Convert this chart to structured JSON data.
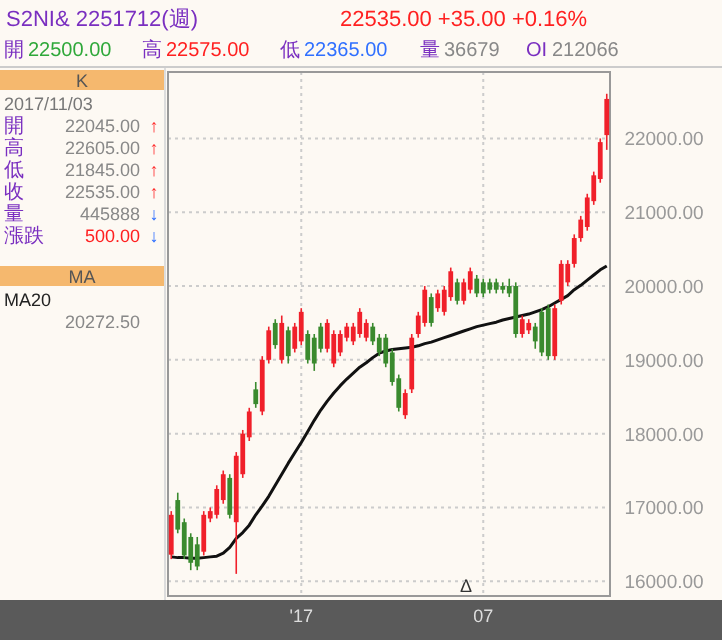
{
  "chart_data": [
    {
      "type": "other",
      "title": "K",
      "subtitle": "2017/11/03",
      "annotations": [
        "開",
        "22045.00",
        "↑",
        "高",
        "22605.00",
        "↑",
        "低",
        "21845.00",
        "↑",
        "收",
        "22535.00",
        "↑",
        "量",
        "445888",
        "↓",
        "漲跌",
        "500.00",
        "↓",
        "MA",
        "20272.50"
      ]
    },
    {
      "type": "candlestick",
      "title": "S2NI& 2251712(週)",
      "subtitle": "22535.00   +35.00   +0.16%",
      "annotations": [
        "開",
        "22500.00",
        "高",
        "22575.00",
        "低",
        "22365.00",
        "量",
        "36679",
        "OI",
        "212066",
        "Δ"
      ],
      "categories": [
        null,
        null,
        null,
        null,
        null,
        null,
        null,
        null,
        null,
        null,
        null,
        null,
        null,
        null,
        null,
        null,
        null,
        null,
        null,
        null,
        "'17",
        null,
        null,
        null,
        null,
        null,
        null,
        null,
        null,
        null,
        null,
        null,
        null,
        null,
        null,
        null,
        null,
        null,
        null,
        null,
        null,
        null,
        null,
        null,
        null,
        null,
        null,
        null,
        "07",
        null,
        null,
        null,
        null,
        null,
        null,
        null,
        null,
        null,
        null,
        null,
        null,
        null,
        null,
        null,
        null,
        null,
        null,
        null
      ],
      "ohlc": [
        [
          16360,
          16950,
          16300,
          16900
        ],
        [
          17100,
          17200,
          16650,
          16700
        ],
        [
          16800,
          16850,
          16300,
          16350
        ],
        [
          16600,
          16650,
          16150,
          16250
        ],
        [
          16500,
          16600,
          16150,
          16200
        ],
        [
          16400,
          16950,
          16350,
          16900
        ],
        [
          16850,
          17000,
          16800,
          16950
        ],
        [
          16900,
          17300,
          16850,
          17250
        ],
        [
          17100,
          17500,
          17050,
          17450
        ],
        [
          17400,
          17450,
          16850,
          16900
        ],
        [
          16800,
          17750,
          16100,
          17700
        ],
        [
          17450,
          18050,
          17400,
          18000
        ],
        [
          17950,
          18350,
          17900,
          18300
        ],
        [
          18600,
          18700,
          18350,
          18400
        ],
        [
          18300,
          19050,
          18250,
          19000
        ],
        [
          19000,
          19450,
          18950,
          19400
        ],
        [
          19500,
          19550,
          19150,
          19200
        ],
        [
          19000,
          19600,
          18950,
          19500
        ],
        [
          19400,
          19450,
          18950,
          19050
        ],
        [
          19150,
          19500,
          19100,
          19450
        ],
        [
          19250,
          19700,
          19200,
          19650
        ],
        [
          19350,
          19400,
          18950,
          19000
        ],
        [
          19300,
          19350,
          18850,
          18950
        ],
        [
          19450,
          19500,
          19100,
          19150
        ],
        [
          19150,
          19550,
          19100,
          19500
        ],
        [
          18950,
          19400,
          18900,
          19350
        ],
        [
          19100,
          19400,
          19050,
          19350
        ],
        [
          19300,
          19500,
          19250,
          19450
        ],
        [
          19250,
          19500,
          19200,
          19450
        ],
        [
          19350,
          19700,
          19300,
          19650
        ],
        [
          19300,
          19550,
          19250,
          19500
        ],
        [
          19450,
          19500,
          19200,
          19250
        ],
        [
          19300,
          19350,
          19050,
          19100
        ],
        [
          19300,
          19350,
          18900,
          18950
        ],
        [
          19100,
          19150,
          18650,
          18700
        ],
        [
          18750,
          18800,
          18300,
          18350
        ],
        [
          18250,
          18600,
          18200,
          18550
        ],
        [
          18600,
          19350,
          18550,
          19300
        ],
        [
          19350,
          19650,
          19300,
          19600
        ],
        [
          19500,
          20000,
          19450,
          19950
        ],
        [
          19850,
          19900,
          19450,
          19500
        ],
        [
          19700,
          19950,
          19650,
          19900
        ],
        [
          19650,
          20000,
          19600,
          19950
        ],
        [
          19850,
          20250,
          19800,
          20200
        ],
        [
          20050,
          20100,
          19750,
          19800
        ],
        [
          19800,
          20100,
          19750,
          20050
        ],
        [
          19950,
          20250,
          19900,
          20200
        ],
        [
          20100,
          20150,
          19850,
          19900
        ],
        [
          20050,
          20100,
          19850,
          19900
        ],
        [
          20050,
          20100,
          19900,
          19950
        ],
        [
          20050,
          20100,
          19900,
          19950
        ],
        [
          20000,
          20050,
          19900,
          19950
        ],
        [
          20000,
          20100,
          19850,
          19900
        ],
        [
          20000,
          20050,
          19300,
          19350
        ],
        [
          19350,
          19600,
          19300,
          19550
        ],
        [
          19400,
          19550,
          19350,
          19500
        ],
        [
          19450,
          19500,
          19150,
          19250
        ],
        [
          19650,
          19700,
          19050,
          19100
        ],
        [
          19700,
          19750,
          19000,
          19050
        ],
        [
          19050,
          19750,
          19000,
          19700
        ],
        [
          19800,
          20350,
          19750,
          20300
        ],
        [
          20050,
          20350,
          20000,
          20300
        ],
        [
          20300,
          20700,
          20250,
          20650
        ],
        [
          20650,
          20950,
          20600,
          20900
        ],
        [
          20800,
          21250,
          20750,
          21200
        ],
        [
          21150,
          21550,
          21100,
          21500
        ],
        [
          21450,
          22000,
          21400,
          21950
        ],
        [
          22045,
          22605,
          21845,
          22535
        ]
      ],
      "colors": [
        "#f0202a",
        "#3a8a2e",
        "#3a8a2e",
        "#3a8a2e",
        "#3a8a2e",
        "#f0202a",
        "#f0202a",
        "#f0202a",
        "#f0202a",
        "#3a8a2e",
        "#f0202a",
        "#f0202a",
        "#f0202a",
        "#3a8a2e",
        "#f0202a",
        "#f0202a",
        "#3a8a2e",
        "#f0202a",
        "#3a8a2e",
        "#f0202a",
        "#f0202a",
        "#3a8a2e",
        "#3a8a2e",
        "#3a8a2e",
        "#f0202a",
        "#f0202a",
        "#f0202a",
        "#f0202a",
        "#f0202a",
        "#f0202a",
        "#f0202a",
        "#3a8a2e",
        "#3a8a2e",
        "#3a8a2e",
        "#3a8a2e",
        "#3a8a2e",
        "#f0202a",
        "#f0202a",
        "#f0202a",
        "#f0202a",
        "#3a8a2e",
        "#f0202a",
        "#f0202a",
        "#f0202a",
        "#3a8a2e",
        "#f0202a",
        "#f0202a",
        "#3a8a2e",
        "#3a8a2e",
        "#3a8a2e",
        "#3a8a2e",
        "#3a8a2e",
        "#3a8a2e",
        "#3a8a2e",
        "#f0202a",
        "#f0202a",
        "#3a8a2e",
        "#3a8a2e",
        "#3a8a2e",
        "#f0202a",
        "#f0202a",
        "#f0202a",
        "#f0202a",
        "#f0202a",
        "#f0202a",
        "#f0202a",
        "#f0202a",
        "#f0202a"
      ],
      "series": [
        {
          "type": "line",
          "name": "MA20",
          "color": "#111111",
          "values": [
            16330,
            16320,
            16320,
            16310,
            16310,
            16320,
            16330,
            16340,
            16380,
            16460,
            16580,
            16660,
            16760,
            16900,
            17020,
            17150,
            17300,
            17450,
            17600,
            17740,
            17880,
            18030,
            18180,
            18320,
            18440,
            18550,
            18650,
            18740,
            18820,
            18900,
            18960,
            19030,
            19090,
            19120,
            19140,
            19150,
            19160,
            19170,
            19190,
            19220,
            19240,
            19270,
            19300,
            19330,
            19360,
            19390,
            19420,
            19450,
            19470,
            19490,
            19510,
            19540,
            19560,
            19580,
            19600,
            19620,
            19650,
            19680,
            19720,
            19770,
            19820,
            19870,
            19950,
            20010,
            20080,
            20150,
            20220,
            20272.5
          ]
        }
      ],
      "ylim": [
        15800,
        22900
      ],
      "yticks": [
        {
          "value": 16000,
          "label": "16000.00"
        },
        {
          "value": 17000,
          "label": "17000.00"
        },
        {
          "value": 18000,
          "label": "18000.00"
        },
        {
          "value": 19000,
          "label": "19000.00"
        },
        {
          "value": 20000,
          "label": "20000.00"
        },
        {
          "value": 21000,
          "label": "21000.00"
        },
        {
          "value": 22000,
          "label": "22000.00"
        }
      ],
      "grid": true
    }
  ]
}
